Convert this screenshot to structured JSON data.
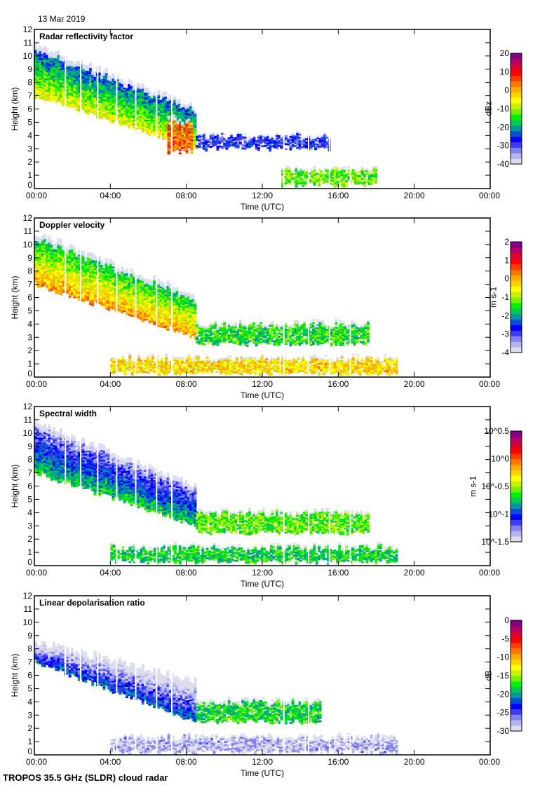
{
  "date_label": "13 Mar 2019",
  "footer_label": "TROPOS 35.5 GHz (SLDR) cloud radar",
  "colormap": [
    "#dcdcee",
    "#b4b4ee",
    "#8282f0",
    "#3c3cf5",
    "#0000ff",
    "#0050d2",
    "#0096a0",
    "#00c850",
    "#00f000",
    "#78f000",
    "#c8f000",
    "#ffff00",
    "#ffd200",
    "#ffaa00",
    "#ff7800",
    "#ff3c00",
    "#ff0000",
    "#dc0032",
    "#b40064",
    "#820082"
  ],
  "chart_data": [
    {
      "type": "heatmap",
      "title": "Radar reflectivity factor",
      "xlabel": "Time (UTC)",
      "ylabel": "Height (km)",
      "xlim": [
        0,
        24
      ],
      "ylim": [
        0,
        12
      ],
      "x_ticks": [
        "00:00",
        "04:00",
        "08:00",
        "12:00",
        "16:00",
        "20:00",
        "00:00"
      ],
      "y_ticks": [
        "0",
        "1",
        "2",
        "3",
        "4",
        "5",
        "6",
        "7",
        "8",
        "9",
        "10",
        "11",
        "12"
      ],
      "colorbar": {
        "label": "dBz",
        "range": [
          -40,
          20
        ],
        "ticks": [
          "20",
          "10",
          "0",
          "-10",
          "-20",
          "-30",
          "-40"
        ]
      },
      "features": [
        {
          "name": "upper cloud",
          "t_start": 0,
          "t_end": 8.5,
          "base_start": 7,
          "base_end": 3,
          "top_start": 10.8,
          "top_end": 6,
          "level": -15
        },
        {
          "name": "melting core",
          "t_start": 7,
          "t_end": 8.3,
          "base": 2.8,
          "top": 5.2,
          "level": 5
        },
        {
          "name": "mid layer",
          "t_start": 8.5,
          "t_end": 15.5,
          "base": 3.0,
          "top": 4.0,
          "level": -28
        },
        {
          "name": "low layer",
          "t_start": 13,
          "t_end": 18,
          "base": 0.3,
          "top": 1.4,
          "level": -12
        }
      ]
    },
    {
      "type": "heatmap",
      "title": "Doppler velocity",
      "xlabel": "Time (UTC)",
      "ylabel": "Height (km)",
      "xlim": [
        0,
        24
      ],
      "ylim": [
        0,
        12
      ],
      "x_ticks": [
        "00:00",
        "04:00",
        "08:00",
        "12:00",
        "16:00",
        "20:00",
        "00:00"
      ],
      "y_ticks": [
        "0",
        "1",
        "2",
        "3",
        "4",
        "5",
        "6",
        "7",
        "8",
        "9",
        "10",
        "11",
        "12"
      ],
      "colorbar": {
        "label": "m s-1",
        "range": [
          -4,
          2
        ],
        "ticks": [
          "2",
          "1",
          "0",
          "-1",
          "-2",
          "-3",
          "-4"
        ]
      },
      "features": [
        {
          "name": "upper cloud",
          "t_start": 0,
          "t_end": 8.5,
          "base_start": 7,
          "base_end": 3,
          "top_start": 10.8,
          "top_end": 6,
          "level": -0.8
        },
        {
          "name": "mid layer",
          "t_start": 8.5,
          "t_end": 17.5,
          "base": 2.5,
          "top": 4.0,
          "level": -1.5
        },
        {
          "name": "low layer",
          "t_start": 4,
          "t_end": 19,
          "base": 0.3,
          "top": 1.4,
          "level": -0.3
        }
      ]
    },
    {
      "type": "heatmap",
      "title": "Spectral width",
      "xlabel": "Time (UTC)",
      "ylabel": "Height (km)",
      "xlim": [
        0,
        24
      ],
      "ylim": [
        0,
        12
      ],
      "x_ticks": [
        "00:00",
        "04:00",
        "08:00",
        "12:00",
        "16:00",
        "20:00",
        "00:00"
      ],
      "y_ticks": [
        "0",
        "1",
        "2",
        "3",
        "4",
        "5",
        "6",
        "7",
        "8",
        "9",
        "10",
        "11",
        "12"
      ],
      "colorbar": {
        "label": "m s-1",
        "scale": "log10",
        "range": [
          -1.5,
          0.5
        ],
        "ticks": [
          "10^0.5",
          "10^0",
          "10^-0.5",
          "10^-1",
          "10^-1.5"
        ]
      },
      "features": [
        {
          "name": "upper cloud",
          "t_start": 0,
          "t_end": 8.5,
          "base_start": 7,
          "base_end": 3,
          "top_start": 10.8,
          "top_end": 6,
          "level": -1.0
        },
        {
          "name": "mid layer",
          "t_start": 8.5,
          "t_end": 17.5,
          "base": 2.5,
          "top": 4.0,
          "level": -0.6
        },
        {
          "name": "low layer",
          "t_start": 4,
          "t_end": 19,
          "base": 0.3,
          "top": 1.4,
          "level": -0.7
        }
      ]
    },
    {
      "type": "heatmap",
      "title": "Linear depolarisation ratio",
      "xlabel": "Time (UTC)",
      "ylabel": "Height (km)",
      "xlim": [
        0,
        24
      ],
      "ylim": [
        0,
        12
      ],
      "x_ticks": [
        "00:00",
        "04:00",
        "08:00",
        "12:00",
        "16:00",
        "20:00",
        "00:00"
      ],
      "y_ticks": [
        "0",
        "1",
        "2",
        "3",
        "4",
        "5",
        "6",
        "7",
        "8",
        "9",
        "10",
        "11",
        "12"
      ],
      "colorbar": {
        "label": "dB",
        "range": [
          -30,
          0
        ],
        "ticks": [
          "0",
          "-5",
          "-10",
          "-15",
          "-20",
          "-25",
          "-30"
        ]
      },
      "features": [
        {
          "name": "upper cloud",
          "t_start": 0,
          "t_end": 8.5,
          "base_start": 7,
          "base_end": 2.5,
          "top_start": 8.5,
          "top_end": 5.5,
          "level": -26
        },
        {
          "name": "mid layer",
          "t_start": 8.5,
          "t_end": 15,
          "base": 2.5,
          "top": 4.0,
          "level": -18
        },
        {
          "name": "low layer",
          "t_start": 4,
          "t_end": 19,
          "base": 0.2,
          "top": 1.3,
          "level": -28
        }
      ]
    }
  ]
}
